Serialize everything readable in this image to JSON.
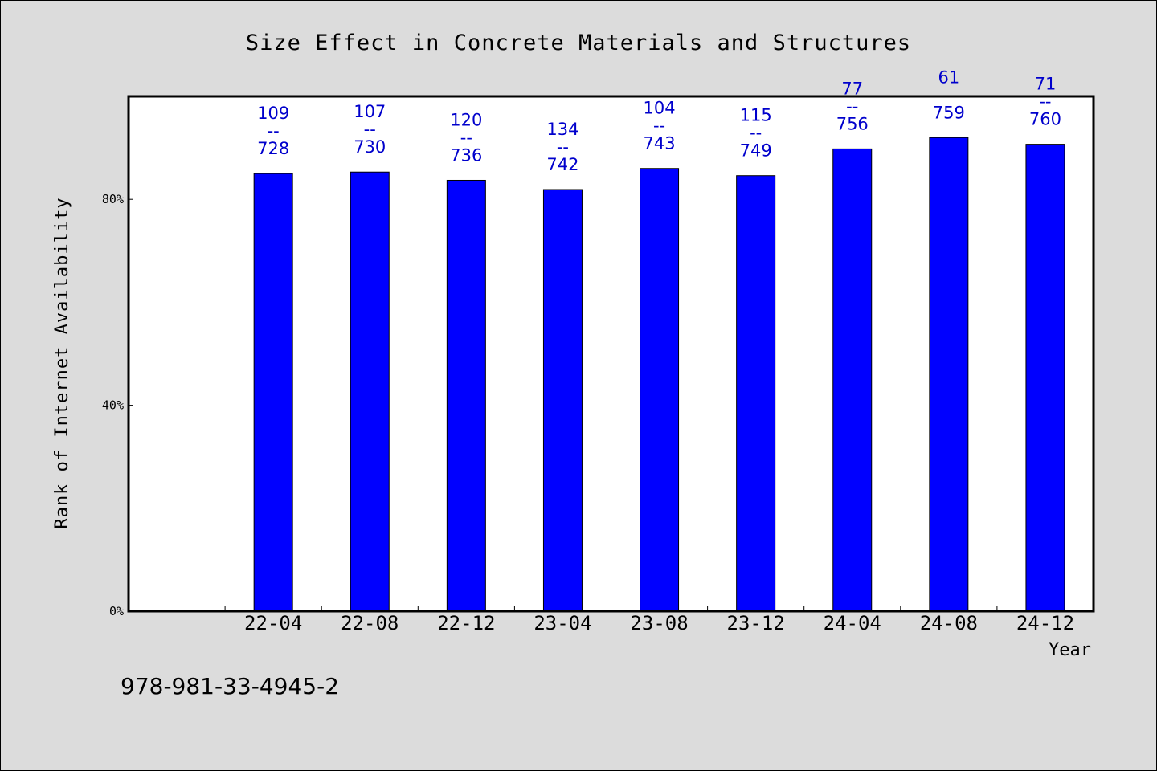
{
  "chart_data": {
    "type": "bar",
    "title": "Size Effect in Concrete Materials and Structures",
    "xlabel": "Year",
    "ylabel": "Rank of Internet Availability",
    "categories": [
      "22-04",
      "22-08",
      "22-12",
      "23-04",
      "23-08",
      "23-12",
      "24-04",
      "24-08",
      "24-12"
    ],
    "values": [
      85.0,
      85.3,
      83.7,
      81.9,
      86.0,
      84.6,
      89.8,
      92.0,
      90.7
    ],
    "data_labels": [
      {
        "top": "109",
        "bottom": "728"
      },
      {
        "top": "107",
        "bottom": "730"
      },
      {
        "top": "120",
        "bottom": "736"
      },
      {
        "top": "134",
        "bottom": "742"
      },
      {
        "top": "104",
        "bottom": "743"
      },
      {
        "top": "115",
        "bottom": "749"
      },
      {
        "top": "77",
        "bottom": "756"
      },
      {
        "top": "61",
        "bottom": "759"
      },
      {
        "top": "71",
        "bottom": "760"
      }
    ],
    "label_separator": "--",
    "y_ticks": [
      {
        "value": 0,
        "label": "0%"
      },
      {
        "value": 40,
        "label": "40%"
      },
      {
        "value": 80,
        "label": "80%"
      }
    ],
    "ylim": [
      0,
      100
    ],
    "grid": false,
    "legend": "none",
    "colors": {
      "bar": "#0000ff",
      "label": "#0000cc",
      "plot_bg": "#ffffff",
      "page_bg": "#dcdcdc"
    }
  },
  "footer_text": "978-981-33-4945-2"
}
